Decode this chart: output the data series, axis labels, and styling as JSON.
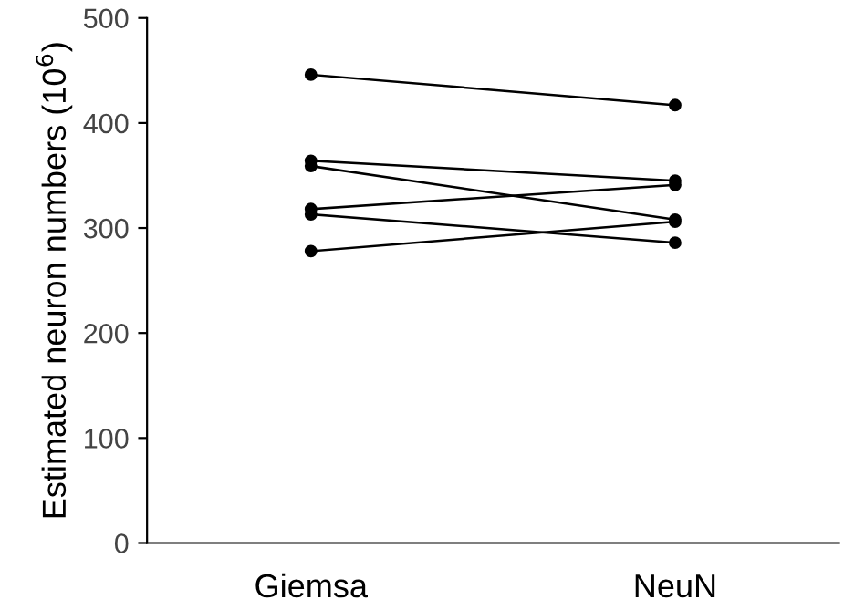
{
  "chart_data": {
    "type": "line",
    "ylabel": "Estimated neuron numbers (10$^{6}$)",
    "categories": [
      "Giemsa",
      "NeuN"
    ],
    "series": [
      {
        "color": "#000000",
        "values": [
          446,
          417
        ]
      },
      {
        "color": "#000000",
        "values": [
          364,
          345
        ]
      },
      {
        "color": "#000000",
        "values": [
          359,
          308
        ]
      },
      {
        "color": "#000000",
        "values": [
          318,
          341
        ]
      },
      {
        "color": "#000000",
        "values": [
          313,
          286
        ]
      },
      {
        "color": "#000000",
        "values": [
          278,
          306
        ]
      }
    ],
    "ylim": [
      0,
      500
    ],
    "yticks": [
      0,
      100,
      200,
      300,
      400,
      500
    ],
    "marker": "circle",
    "line_style": "solid",
    "grid": false,
    "legend": false
  }
}
